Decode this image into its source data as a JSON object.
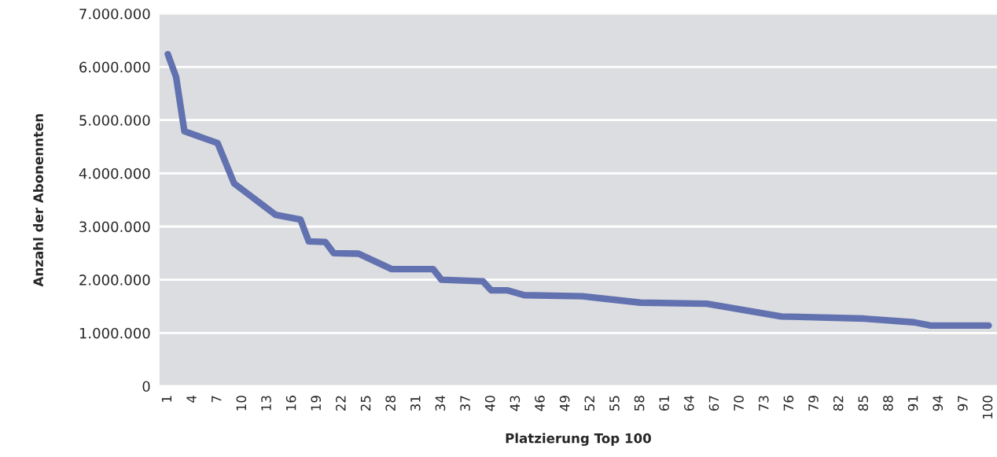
{
  "chart_data": {
    "type": "line",
    "xlabel": "Platzierung Top 100",
    "ylabel": "Anzahl der Abonennten",
    "x": [
      1,
      2,
      3,
      7,
      9,
      14,
      17,
      18,
      20,
      21,
      24,
      28,
      33,
      34,
      39,
      40,
      42,
      44,
      51,
      58,
      66,
      75,
      85,
      91,
      93,
      100
    ],
    "series": [
      {
        "color": "#6272b0",
        "values": [
          6240000,
          5810000,
          4790000,
          4570000,
          3810000,
          3220000,
          3130000,
          2720000,
          2710000,
          2500000,
          2490000,
          2200000,
          2200000,
          2000000,
          1970000,
          1800000,
          1800000,
          1710000,
          1690000,
          1570000,
          1550000,
          1310000,
          1270000,
          1200000,
          1140000,
          1140000
        ]
      }
    ],
    "xlim": [
      0,
      101
    ],
    "xticks": [
      1,
      4,
      7,
      10,
      13,
      16,
      19,
      22,
      25,
      28,
      31,
      34,
      37,
      40,
      43,
      46,
      49,
      52,
      55,
      58,
      61,
      64,
      67,
      70,
      73,
      76,
      79,
      82,
      85,
      88,
      91,
      94,
      97,
      100
    ],
    "ylim": [
      0,
      7000000
    ],
    "yticks": [
      0,
      {
        "value": 1000000,
        "label": "1.000.000"
      },
      {
        "value": 2000000,
        "label": "2.000.000"
      },
      {
        "value": 3000000,
        "label": "3.000.000"
      },
      {
        "value": 4000000,
        "label": "4.000.000"
      },
      {
        "value": 5000000,
        "label": "5.000.000"
      },
      {
        "value": 6000000,
        "label": "6.000.000"
      },
      {
        "value": 7000000,
        "label": "7.000.000"
      }
    ],
    "grid": "y",
    "legend": false,
    "marker": "none",
    "line_style": "solid"
  }
}
